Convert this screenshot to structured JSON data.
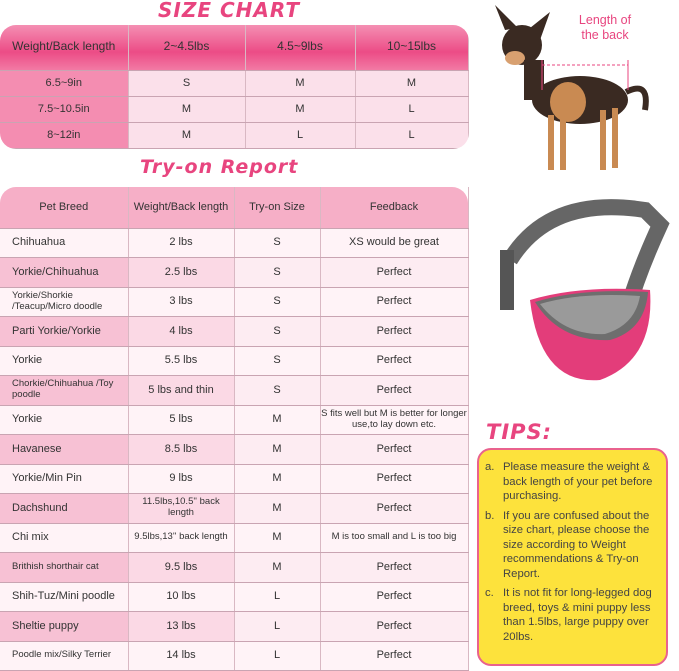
{
  "size_chart": {
    "title": "SIZE CHART",
    "headers": [
      "Weight/Back length",
      "2~4.5lbs",
      "4.5~9lbs",
      "10~15lbs"
    ],
    "rows": [
      [
        "6.5~9in",
        "S",
        "M",
        "M"
      ],
      [
        "7.5~10.5in",
        "M",
        "M",
        "L"
      ],
      [
        "8~12in",
        "M",
        "L",
        "L"
      ]
    ]
  },
  "try_on": {
    "title": "Try-on Report",
    "headers": [
      "Pet Breed",
      "Weight/Back length",
      "Try-on Size",
      "Feedback"
    ],
    "rows": [
      [
        "Chihuahua",
        "2 lbs",
        "S",
        "XS would be great"
      ],
      [
        "Yorkie/Chihuahua",
        "2.5 lbs",
        "S",
        "Perfect"
      ],
      [
        "Yorkie/Shorkie /Teacup/Micro doodle",
        "3 lbs",
        "S",
        "Perfect"
      ],
      [
        "Parti Yorkie/Yorkie",
        "4 lbs",
        "S",
        "Perfect"
      ],
      [
        "Yorkie",
        "5.5 lbs",
        "S",
        "Perfect"
      ],
      [
        "Chorkie/Chihuahua /Toy poodle",
        "5 lbs and thin",
        "S",
        "Perfect"
      ],
      [
        "Yorkie",
        "5 lbs",
        "M",
        "S fits well but M is better for longer use,to lay down etc."
      ],
      [
        "Havanese",
        "8.5 lbs",
        "M",
        "Perfect"
      ],
      [
        "Yorkie/Min Pin",
        "9 lbs",
        "M",
        "Perfect"
      ],
      [
        "Dachshund",
        "11.5lbs,10.5'' back length",
        "M",
        "Perfect"
      ],
      [
        "Chi mix",
        "9.5lbs,13'' back length",
        "M",
        "M is too small and L is too big"
      ],
      [
        "Brithish shorthair cat",
        "9.5 lbs",
        "M",
        "Perfect"
      ],
      [
        "Shih-Tuz/Mini poodle",
        "10 lbs",
        "L",
        "Perfect"
      ],
      [
        "Sheltie puppy",
        "13 lbs",
        "L",
        "Perfect"
      ],
      [
        "Poodle mix/Silky Terrier",
        "14 lbs",
        "L",
        "Perfect"
      ]
    ]
  },
  "dog_photo": {
    "label": "Length of the back"
  },
  "tips": {
    "title": "TIPS:",
    "items": [
      {
        "marker": "a.",
        "text": "Please measure the weight & back length of your pet before purchasing."
      },
      {
        "marker": "b.",
        "text": "If you are confused about the size chart, please choose the size according to Weight recommendations & Try-on Report."
      },
      {
        "marker": "c.",
        "text": "It is not fit for long-legged dog breed, toys & mini puppy less than 1.5lbs, large puppy over 20lbs."
      }
    ]
  },
  "colors": {
    "accent": "#e8457f",
    "tips_bg": "#fde23c"
  }
}
